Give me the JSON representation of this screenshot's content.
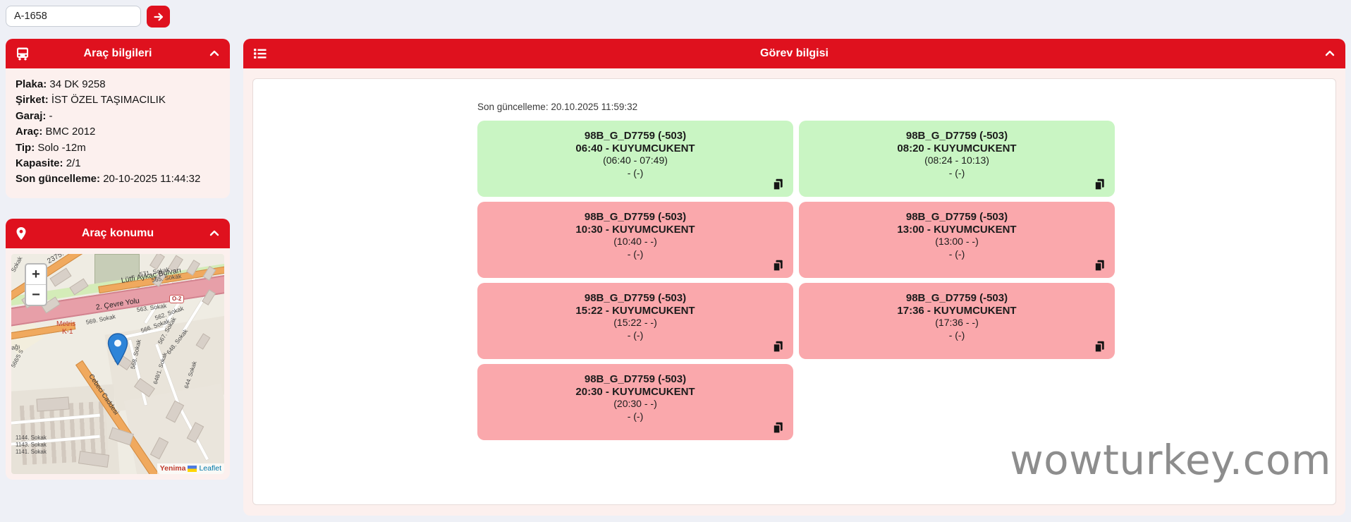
{
  "colors": {
    "accent_red": "#df111e",
    "page_bg": "#eef0f6",
    "panel_body_bg": "#fcf0ee",
    "card_green": "#c9f5c3",
    "card_red": "#faa8ac",
    "watermark_gray": "#8d8d8d",
    "leaflet_link_blue": "#0078a8"
  },
  "search": {
    "value": "A-1658"
  },
  "vehicle_panel": {
    "title": "Araç bilgileri",
    "fields": [
      {
        "label": "Plaka:",
        "value": "34 DK 9258"
      },
      {
        "label": "Şirket:",
        "value": "İST ÖZEL TAŞIMACILIK"
      },
      {
        "label": "Garaj:",
        "value": "-"
      },
      {
        "label": "Araç:",
        "value": "BMC 2012"
      },
      {
        "label": "Tip:",
        "value": "Solo -12m"
      },
      {
        "label": "Kapasite:",
        "value": "2/1"
      },
      {
        "label": "Son güncelleme:",
        "value": "20-10-2025 11:44:32"
      }
    ]
  },
  "location_panel": {
    "title": "Araç konumu",
    "map": {
      "zoom_in_label": "+",
      "zoom_out_label": "−",
      "attribution_place": "Yenima",
      "attribution_link": "Leaflet",
      "street_labels": [
        "2375. Sokak",
        "571. Sokak",
        "565. Sokak",
        "Lütfi Aykaç Bulvarı",
        "O-2",
        "2. Çevre Yolu",
        "563. Sokak",
        "562. Sokak",
        "Metris",
        "K-1",
        "569. Sokak",
        "566. Sokak",
        "567. Sokak",
        "568/5 S",
        "568. Sokak",
        "648/1. Sokak",
        "648. Sokak",
        "644. Sokak",
        "Cebeci Caddesi",
        "1144. Sokak",
        "1143. Sokak",
        "1141. Sokak",
        "ağı",
        "Sokak"
      ]
    }
  },
  "task_panel": {
    "title": "Görev bilgisi",
    "last_update": "Son güncelleme: 20.10.2025 11:59:32",
    "cards": [
      {
        "route": "98B_G_D7759 (-503)",
        "time_stop": "06:40 - KUYUMCUKENT",
        "window": "(06:40 - 07:49)",
        "extra": "- (-)",
        "status": "green"
      },
      {
        "route": "98B_G_D7759 (-503)",
        "time_stop": "08:20 - KUYUMCUKENT",
        "window": "(08:24 - 10:13)",
        "extra": "- (-)",
        "status": "green"
      },
      {
        "route": "98B_G_D7759 (-503)",
        "time_stop": "10:30 - KUYUMCUKENT",
        "window": "(10:40 - -)",
        "extra": "- (-)",
        "status": "red"
      },
      {
        "route": "98B_G_D7759 (-503)",
        "time_stop": "13:00 - KUYUMCUKENT",
        "window": "(13:00 - -)",
        "extra": "- (-)",
        "status": "red"
      },
      {
        "route": "98B_G_D7759 (-503)",
        "time_stop": "15:22 - KUYUMCUKENT",
        "window": "(15:22 - -)",
        "extra": "- (-)",
        "status": "red"
      },
      {
        "route": "98B_G_D7759 (-503)",
        "time_stop": "17:36 - KUYUMCUKENT",
        "window": "(17:36 - -)",
        "extra": "- (-)",
        "status": "red"
      },
      {
        "route": "98B_G_D7759 (-503)",
        "time_stop": "20:30 - KUYUMCUKENT",
        "window": "(20:30 - -)",
        "extra": "- (-)",
        "status": "red"
      }
    ]
  },
  "watermark": "wowturkey.com"
}
